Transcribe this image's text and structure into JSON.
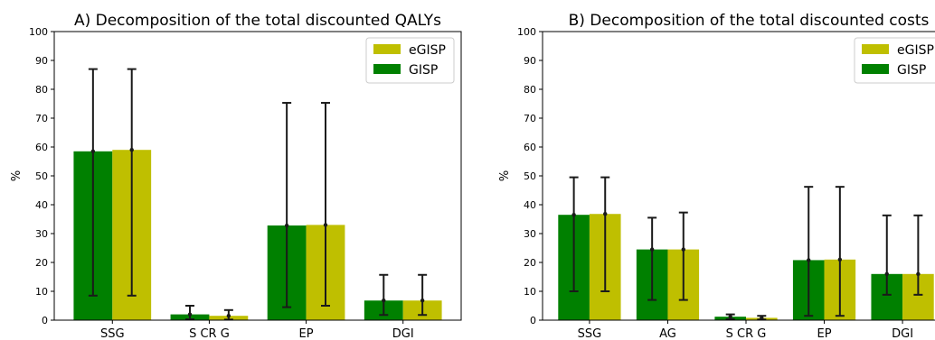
{
  "chart_data": [
    {
      "type": "bar",
      "title": "A) Decomposition of the total discounted QALYs",
      "ylabel": "%",
      "xlabel": "",
      "ylim": [
        0,
        100
      ],
      "yticks": [
        0,
        10,
        20,
        30,
        40,
        50,
        60,
        70,
        80,
        90,
        100
      ],
      "categories": [
        "SSG",
        "S CR G",
        "EP",
        "DGI"
      ],
      "legend_position": "top-right",
      "legend_order": [
        "eGISP",
        "GISP"
      ],
      "series": [
        {
          "name": "GISP",
          "color": "#008000",
          "values": [
            58.5,
            2.0,
            32.8,
            6.8
          ],
          "err_low": [
            8.5,
            0.3,
            4.5,
            1.8
          ],
          "err_high": [
            87.0,
            5.0,
            75.3,
            15.7
          ]
        },
        {
          "name": "eGISP",
          "color": "#bfbf00",
          "values": [
            59.0,
            1.5,
            33.0,
            6.8
          ],
          "err_low": [
            8.5,
            0.2,
            5.0,
            1.8
          ],
          "err_high": [
            87.0,
            3.5,
            75.3,
            15.7
          ]
        }
      ]
    },
    {
      "type": "bar",
      "title": "B) Decomposition of the total discounted costs",
      "ylabel": "%",
      "xlabel": "",
      "ylim": [
        0,
        100
      ],
      "yticks": [
        0,
        10,
        20,
        30,
        40,
        50,
        60,
        70,
        80,
        90,
        100
      ],
      "categories": [
        "SSG",
        "AG",
        "S CR G",
        "EP",
        "DGI"
      ],
      "legend_position": "top-right",
      "legend_order": [
        "eGISP",
        "GISP"
      ],
      "series": [
        {
          "name": "GISP",
          "color": "#008000",
          "values": [
            36.5,
            24.5,
            1.2,
            20.8,
            16.0
          ],
          "err_low": [
            10.0,
            7.0,
            0.3,
            1.5,
            8.8
          ],
          "err_high": [
            49.5,
            35.5,
            2.0,
            46.2,
            36.3
          ]
        },
        {
          "name": "eGISP",
          "color": "#bfbf00",
          "values": [
            36.8,
            24.5,
            0.8,
            21.0,
            16.0
          ],
          "err_low": [
            10.0,
            7.0,
            0.2,
            1.5,
            8.8
          ],
          "err_high": [
            49.5,
            37.3,
            1.5,
            46.2,
            36.3
          ]
        }
      ]
    }
  ]
}
